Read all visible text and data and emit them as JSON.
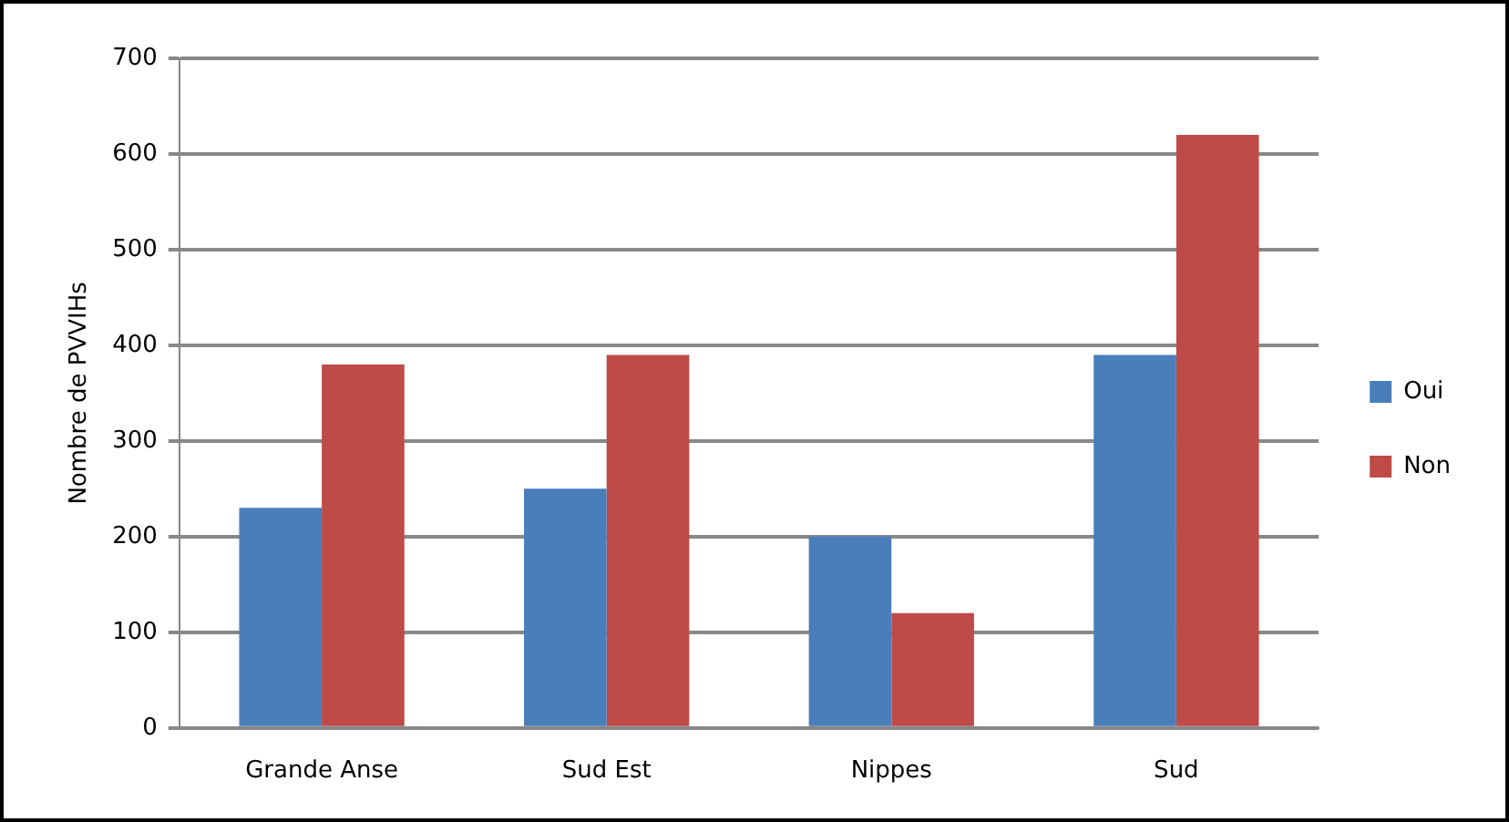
{
  "chart_data": {
    "type": "bar",
    "ylabel": "Nombre de PVVIHs",
    "categories": [
      "Grande Anse",
      "Sud Est",
      "Nippes",
      "Sud"
    ],
    "series": [
      {
        "name": "Oui",
        "color": "#4a7ebb",
        "values": [
          230,
          250,
          200,
          390
        ]
      },
      {
        "name": "Non",
        "color": "#be4b48",
        "values": [
          380,
          390,
          120,
          620
        ]
      }
    ],
    "ylim": [
      0,
      700
    ],
    "yticks": [
      0,
      100,
      200,
      300,
      400,
      500,
      600,
      700
    ],
    "grid": "y",
    "legend": "right"
  }
}
